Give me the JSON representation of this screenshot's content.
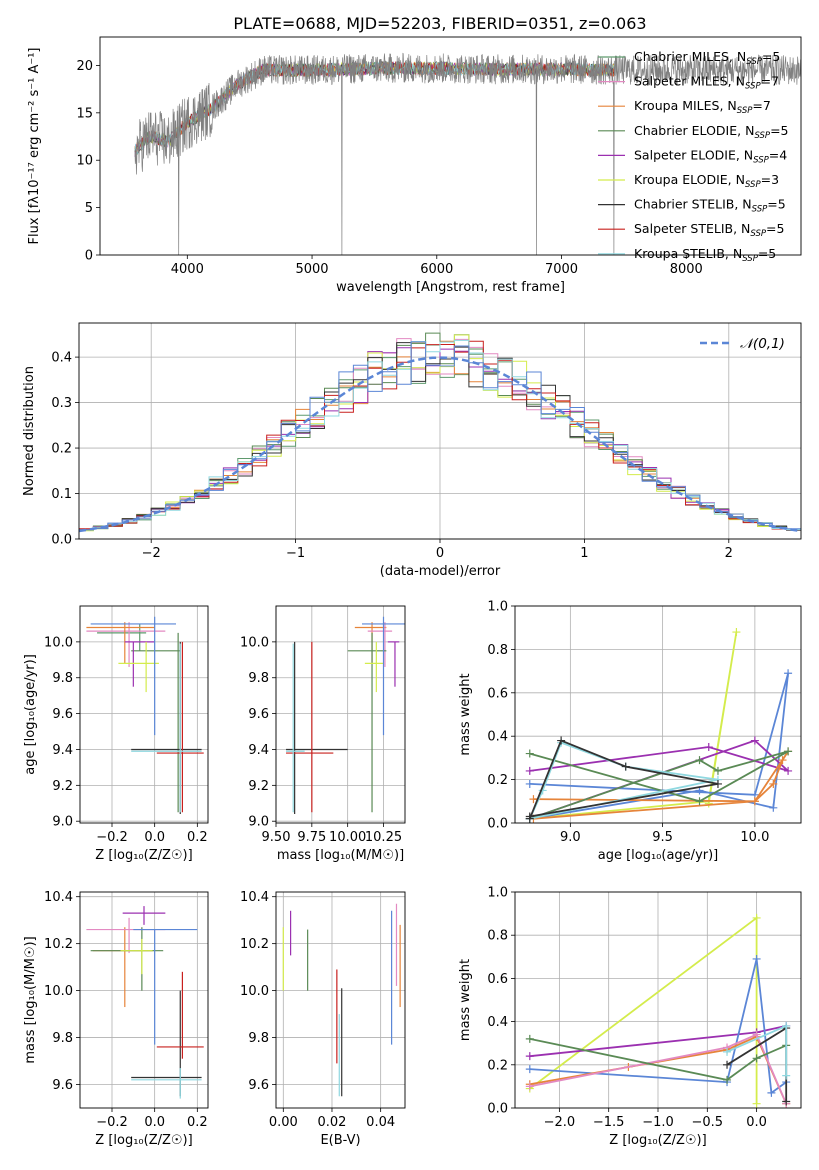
{
  "title": "PLATE=0688, MJD=52203, FIBERID=0351, z=0.063",
  "colors": {
    "chabrier_miles": "#5f9a6e",
    "salpeter_miles": "#e38ac2",
    "kroupa_miles": "#e6843a",
    "chabrier_elodie": "#5a8a55",
    "salpeter_elodie": "#9b30b0",
    "kroupa_elodie": "#d4ec4c",
    "chabrier_stelib": "#333333",
    "salpeter_stelib": "#c8201e",
    "kroupa_stelib": "#8fd8e0",
    "blue": "#5b86d6",
    "data": "#808080"
  },
  "chart_data": [
    {
      "id": "spectrum",
      "type": "line",
      "xlabel": "wavelength [Angstrom, rest frame]",
      "ylabel": "Flux [fλ10⁻¹⁷ erg cm⁻² s⁻¹ A⁻¹]",
      "xlim": [
        3300,
        8920
      ],
      "ylim": [
        0,
        23
      ],
      "xticks": [
        4000,
        5000,
        6000,
        7000,
        8000
      ],
      "yticks": [
        0,
        5,
        10,
        15,
        20
      ],
      "grid": false,
      "legend_position": "right",
      "legend": [
        {
          "label": "Chabrier MILES, N",
          "sub": "SSP",
          "suffix": "=5",
          "color_key": "chabrier_miles"
        },
        {
          "label": "Salpeter MILES, N",
          "sub": "SSP",
          "suffix": "=7",
          "color_key": "salpeter_miles"
        },
        {
          "label": "Kroupa MILES, N",
          "sub": "SSP",
          "suffix": "=7",
          "color_key": "kroupa_miles"
        },
        {
          "label": "Chabrier ELODIE, N",
          "sub": "SSP",
          "suffix": "=5",
          "color_key": "chabrier_elodie"
        },
        {
          "label": "Salpeter ELODIE, N",
          "sub": "SSP",
          "suffix": "=4",
          "color_key": "salpeter_elodie"
        },
        {
          "label": "Kroupa ELODIE, N",
          "sub": "SSP",
          "suffix": "=3",
          "color_key": "kroupa_elodie"
        },
        {
          "label": "Chabrier STELIB, N",
          "sub": "SSP",
          "suffix": "=5",
          "color_key": "chabrier_stelib"
        },
        {
          "label": "Salpeter STELIB, N",
          "sub": "SSP",
          "suffix": "=5",
          "color_key": "salpeter_stelib"
        },
        {
          "label": "Kroupa STELIB, N",
          "sub": "SSP",
          "suffix": "=5",
          "color_key": "kroupa_stelib"
        }
      ],
      "continuum": {
        "x": [
          3580,
          3700,
          3850,
          4000,
          4200,
          4400,
          4600,
          5000,
          5500,
          6000,
          6500,
          7000,
          7400
        ],
        "y": [
          11,
          12.5,
          12,
          14,
          15.5,
          18,
          19.5,
          19.5,
          19.7,
          19.7,
          19.6,
          19.6,
          19.5
        ]
      },
      "spikes": [
        {
          "x": 3930,
          "y": 0
        },
        {
          "x": 5240,
          "y": 0
        },
        {
          "x": 6800,
          "y": 0
        },
        {
          "x": 7420,
          "y": 0
        }
      ]
    },
    {
      "id": "residuals",
      "type": "line",
      "xlabel": "(data-model)/error",
      "ylabel": "Normed distribution",
      "xlim": [
        -2.5,
        2.5
      ],
      "ylim": [
        0,
        0.475
      ],
      "xticks": [
        -2,
        -1,
        0,
        1,
        2
      ],
      "yticks": [
        0.0,
        0.1,
        0.2,
        0.3,
        0.4
      ],
      "grid": true,
      "legend_position": "top-right",
      "series": [
        {
          "name": "𝒩(0,1)",
          "kind": "gaussian",
          "mean": 0,
          "sigma": 1
        }
      ],
      "histogram": {
        "bin_width": 0.1,
        "from": -2.5,
        "to": 2.5
      }
    },
    {
      "id": "age-vs-Z",
      "type": "scatter",
      "xlabel": "Z [log₁₀(Z/Z☉)]",
      "ylabel": "age  [log₁₀(age/yr)]",
      "xlim": [
        -0.35,
        0.25
      ],
      "ylim": [
        8.99,
        10.2
      ],
      "xticks": [
        -0.2,
        0.0,
        0.2
      ],
      "yticks": [
        9.0,
        9.2,
        9.4,
        9.6,
        9.8,
        10.0
      ],
      "grid": true,
      "points": [
        {
          "color_key": "chabrier_miles",
          "x": -0.07,
          "xerr": [
            0.2,
            0.03
          ],
          "y": 10.05,
          "yerr": [
            0.1,
            0.05
          ]
        },
        {
          "color_key": "salpeter_miles",
          "x": -0.12,
          "xerr": [
            0.2,
            0.17
          ],
          "y": 10.06,
          "yerr": [
            0.2,
            0.05
          ]
        },
        {
          "color_key": "kroupa_miles",
          "x": -0.14,
          "xerr": [
            0.18,
            0.14
          ],
          "y": 10.08,
          "yerr": [
            0.2,
            0.03
          ]
        },
        {
          "color_key": "chabrier_elodie",
          "x": 0.11,
          "xerr": [
            0.22,
            0.01
          ],
          "y": 9.95,
          "yerr": [
            0.9,
            0.1
          ]
        },
        {
          "color_key": "salpeter_elodie",
          "x": -0.1,
          "xerr": [
            0.04,
            0.1
          ],
          "y": 10.0,
          "yerr": [
            0.25,
            0.0
          ]
        },
        {
          "color_key": "kroupa_elodie",
          "x": -0.04,
          "xerr": [
            0.13,
            0.06
          ],
          "y": 9.88,
          "yerr": [
            0.16,
            0.12
          ]
        },
        {
          "color_key": "chabrier_stelib",
          "x": 0.12,
          "xerr": [
            0.23,
            0.1
          ],
          "y": 9.4,
          "yerr": [
            0.36,
            0.6
          ]
        },
        {
          "color_key": "salpeter_stelib",
          "x": 0.13,
          "xerr": [
            0.12,
            0.1
          ],
          "y": 9.38,
          "yerr": [
            0.33,
            0.62
          ]
        },
        {
          "color_key": "kroupa_stelib",
          "x": 0.12,
          "xerr": [
            0.23,
            0.1
          ],
          "y": 9.39,
          "yerr": [
            0.34,
            0.6
          ]
        },
        {
          "color_key": "blue",
          "x": 0.0,
          "xerr": [
            0.3,
            0.1
          ],
          "y": 10.1,
          "yerr": [
            0.62,
            0.04
          ]
        }
      ]
    },
    {
      "id": "age-vs-mass",
      "type": "scatter",
      "xlabel": "mass [log₁₀(M/M☉)]",
      "ylabel": "",
      "xlim": [
        9.5,
        10.4
      ],
      "ylim": [
        8.99,
        10.2
      ],
      "xticks": [
        9.5,
        9.75,
        10.0,
        10.25
      ],
      "yticks": [
        9.0,
        9.2,
        9.4,
        9.6,
        9.8,
        10.0
      ],
      "grid": true,
      "points": [
        {
          "color_key": "kroupa_miles",
          "x": 10.17,
          "xerr": [
            0.12,
            0.1
          ],
          "y": 10.08,
          "yerr": [
            0.2,
            0.03
          ]
        },
        {
          "color_key": "salpeter_miles",
          "x": 10.26,
          "xerr": [
            0.12,
            0.05
          ],
          "y": 10.06,
          "yerr": [
            0.2,
            0.05
          ]
        },
        {
          "color_key": "chabrier_elodie",
          "x": 10.17,
          "xerr": [
            0.17,
            0.1
          ],
          "y": 9.95,
          "yerr": [
            0.9,
            0.1
          ]
        },
        {
          "color_key": "salpeter_elodie",
          "x": 10.33,
          "xerr": [
            0.05,
            0.03
          ],
          "y": 10.0,
          "yerr": [
            0.25,
            0.0
          ]
        },
        {
          "color_key": "kroupa_elodie",
          "x": 10.2,
          "xerr": [
            0.08,
            0.05
          ],
          "y": 9.88,
          "yerr": [
            0.16,
            0.12
          ]
        },
        {
          "color_key": "chabrier_stelib",
          "x": 9.63,
          "xerr": [
            0.06,
            0.37
          ],
          "y": 9.4,
          "yerr": [
            0.36,
            0.6
          ]
        },
        {
          "color_key": "salpeter_stelib",
          "x": 9.75,
          "xerr": [
            0.18,
            0.15
          ],
          "y": 9.38,
          "yerr": [
            0.33,
            0.62
          ]
        },
        {
          "color_key": "kroupa_stelib",
          "x": 9.62,
          "xerr": [
            0.05,
            0.08
          ],
          "y": 9.39,
          "yerr": [
            0.34,
            0.6
          ]
        },
        {
          "color_key": "blue",
          "x": 10.25,
          "xerr": [
            0.15,
            0.15
          ],
          "y": 10.1,
          "yerr": [
            0.62,
            0.04
          ]
        }
      ]
    },
    {
      "id": "massweight-vs-age",
      "type": "line",
      "xlabel": "age  [log₁₀(age/yr)]",
      "ylabel": "mass weight",
      "xlim": [
        8.7,
        10.25
      ],
      "ylim": [
        0,
        1.0
      ],
      "xticks": [
        9.0,
        9.5,
        10.0
      ],
      "yticks": [
        0.0,
        0.2,
        0.4,
        0.6,
        0.8,
        1.0
      ],
      "grid": true,
      "series": [
        {
          "color_key": "kroupa_elodie",
          "x": [
            8.78,
            9.75,
            9.9,
            9.75
          ],
          "y": [
            0.02,
            0.1,
            0.88,
            0.09
          ]
        },
        {
          "color_key": "blue",
          "x": [
            8.78,
            9.7,
            10.1,
            10.18,
            10.0,
            8.78
          ],
          "y": [
            0.02,
            0.15,
            0.07,
            0.69,
            0.13,
            0.18
          ]
        },
        {
          "color_key": "salpeter_elodie",
          "x": [
            8.78,
            10.0,
            10.18,
            9.75,
            8.78
          ],
          "y": [
            0.02,
            0.38,
            0.24,
            0.35,
            0.24
          ]
        },
        {
          "color_key": "kroupa_miles",
          "x": [
            8.8,
            10.0,
            10.1,
            10.15,
            10.18,
            10.0,
            8.8
          ],
          "y": [
            0.02,
            0.1,
            0.18,
            0.29,
            0.33,
            0.1,
            0.11
          ]
        },
        {
          "color_key": "chabrier_elodie",
          "x": [
            8.78,
            9.7,
            9.8,
            10.18,
            9.7,
            8.78
          ],
          "y": [
            0.02,
            0.29,
            0.24,
            0.33,
            0.1,
            0.32
          ]
        },
        {
          "color_key": "kroupa_stelib",
          "x": [
            8.78,
            8.85,
            8.95,
            9.3,
            9.8,
            8.78
          ],
          "y": [
            0.02,
            0.15,
            0.37,
            0.26,
            0.2,
            0.02
          ]
        },
        {
          "color_key": "chabrier_stelib",
          "x": [
            8.78,
            8.95,
            9.3,
            9.8,
            8.78
          ],
          "y": [
            0.02,
            0.38,
            0.26,
            0.18,
            0.03
          ]
        }
      ]
    },
    {
      "id": "mass-vs-Z",
      "type": "scatter",
      "xlabel": "Z [log₁₀(Z/Z☉)]",
      "ylabel": "mass [log₁₀(M/M☉)]",
      "xlim": [
        -0.35,
        0.25
      ],
      "ylim": [
        9.5,
        10.42
      ],
      "xticks": [
        -0.2,
        0.0,
        0.2
      ],
      "yticks": [
        9.6,
        9.8,
        10.0,
        10.2,
        10.4
      ],
      "grid": true,
      "points": [
        {
          "color_key": "kroupa_miles",
          "x": -0.14,
          "xerr": [
            0.15,
            0.13
          ],
          "y": 10.17,
          "yerr": [
            0.24,
            0.1
          ]
        },
        {
          "color_key": "salpeter_miles",
          "x": -0.12,
          "xerr": [
            0.2,
            0.17
          ],
          "y": 10.26,
          "yerr": [
            0.1,
            0.05
          ]
        },
        {
          "color_key": "salpeter_elodie",
          "x": -0.05,
          "xerr": [
            0.1,
            0.1
          ],
          "y": 10.33,
          "yerr": [
            0.05,
            0.03
          ]
        },
        {
          "color_key": "chabrier_elodie",
          "x": -0.06,
          "xerr": [
            0.24,
            0.1
          ],
          "y": 10.17,
          "yerr": [
            0.17,
            0.1
          ]
        },
        {
          "color_key": "kroupa_elodie",
          "x": -0.06,
          "xerr": [
            0.1,
            0.05
          ],
          "y": 10.17,
          "yerr": [
            0.1,
            0.05
          ]
        },
        {
          "color_key": "chabrier_stelib",
          "x": 0.12,
          "xerr": [
            0.23,
            0.1
          ],
          "y": 9.63,
          "yerr": [
            0.08,
            0.37
          ]
        },
        {
          "color_key": "salpeter_stelib",
          "x": 0.13,
          "xerr": [
            0.12,
            0.1
          ],
          "y": 9.76,
          "yerr": [
            0.05,
            0.32
          ]
        },
        {
          "color_key": "kroupa_stelib",
          "x": 0.12,
          "xerr": [
            0.23,
            0.1
          ],
          "y": 9.62,
          "yerr": [
            0.08,
            0.05
          ]
        },
        {
          "color_key": "blue",
          "x": 0.0,
          "xerr": [
            0.1,
            0.2
          ],
          "y": 10.26,
          "yerr": [
            0.49,
            0.0
          ]
        }
      ]
    },
    {
      "id": "mass-vs-EBV",
      "type": "scatter",
      "xlabel": "E(B-V)",
      "ylabel": "",
      "xlim": [
        -0.003,
        0.05
      ],
      "ylim": [
        9.5,
        10.42
      ],
      "xticks": [
        0.0,
        0.02,
        0.04
      ],
      "yticks": [
        9.6,
        9.8,
        10.0,
        10.2,
        10.4
      ],
      "grid": true,
      "points": [
        {
          "color_key": "kroupa_elodie",
          "x": 0.0,
          "y": 10.17,
          "yerr": [
            0.17,
            0.1
          ]
        },
        {
          "color_key": "salpeter_elodie",
          "x": 0.003,
          "y": 10.25,
          "yerr": [
            0.1,
            0.09
          ]
        },
        {
          "color_key": "chabrier_elodie",
          "x": 0.01,
          "y": 10.13,
          "yerr": [
            0.13,
            0.13
          ]
        },
        {
          "color_key": "salpeter_stelib",
          "x": 0.022,
          "y": 9.88,
          "yerr": [
            0.19,
            0.21
          ]
        },
        {
          "color_key": "chabrier_stelib",
          "x": 0.024,
          "y": 9.78,
          "yerr": [
            0.23,
            0.23
          ]
        },
        {
          "color_key": "kroupa_stelib",
          "x": 0.023,
          "y": 9.7,
          "yerr": [
            0.15,
            0.2
          ]
        },
        {
          "color_key": "blue",
          "x": 0.0445,
          "y": 10.05,
          "yerr": [
            0.28,
            0.29
          ]
        },
        {
          "color_key": "salpeter_miles",
          "x": 0.0465,
          "y": 10.22,
          "yerr": [
            0.2,
            0.15
          ]
        },
        {
          "color_key": "kroupa_miles",
          "x": 0.048,
          "y": 10.1,
          "yerr": [
            0.17,
            0.18
          ]
        }
      ]
    },
    {
      "id": "massweight-vs-Z",
      "type": "line",
      "xlabel": "Z [log₁₀(Z/Z☉)]",
      "ylabel": "mass weight",
      "xlim": [
        -2.45,
        0.45
      ],
      "ylim": [
        0,
        1.0
      ],
      "xticks": [
        -2.0,
        -1.5,
        -1.0,
        -0.5,
        0.0
      ],
      "yticks": [
        0.0,
        0.2,
        0.4,
        0.6,
        0.8,
        1.0
      ],
      "grid": true,
      "series": [
        {
          "color_key": "kroupa_elodie",
          "x": [
            -2.3,
            0.0,
            0.0
          ],
          "y": [
            0.09,
            0.88,
            0.02
          ]
        },
        {
          "color_key": "salpeter_elodie",
          "x": [
            -2.3,
            0.0,
            0.3
          ],
          "y": [
            0.24,
            0.35,
            0.38
          ]
        },
        {
          "color_key": "blue",
          "x": [
            -2.3,
            -0.3,
            0.0,
            0.15,
            0.3
          ],
          "y": [
            0.18,
            0.12,
            0.69,
            0.07,
            0.12
          ]
        },
        {
          "color_key": "kroupa_miles",
          "x": [
            -2.3,
            -1.3,
            -0.3,
            0.0,
            0.3
          ],
          "y": [
            0.11,
            0.19,
            0.27,
            0.33,
            0.02
          ]
        },
        {
          "color_key": "salpeter_miles",
          "x": [
            -2.3,
            -0.3,
            0.0,
            0.3
          ],
          "y": [
            0.1,
            0.28,
            0.34,
            0.02
          ]
        },
        {
          "color_key": "chabrier_elodie",
          "x": [
            -2.3,
            -0.3,
            0.0,
            0.3
          ],
          "y": [
            0.32,
            0.13,
            0.23,
            0.29
          ]
        },
        {
          "color_key": "chabrier_stelib",
          "x": [
            -0.3,
            0.3,
            0.3
          ],
          "y": [
            0.2,
            0.37,
            0.03
          ]
        },
        {
          "color_key": "kroupa_stelib",
          "x": [
            -0.3,
            0.3,
            0.3
          ],
          "y": [
            0.26,
            0.38,
            0.15
          ]
        }
      ]
    }
  ]
}
